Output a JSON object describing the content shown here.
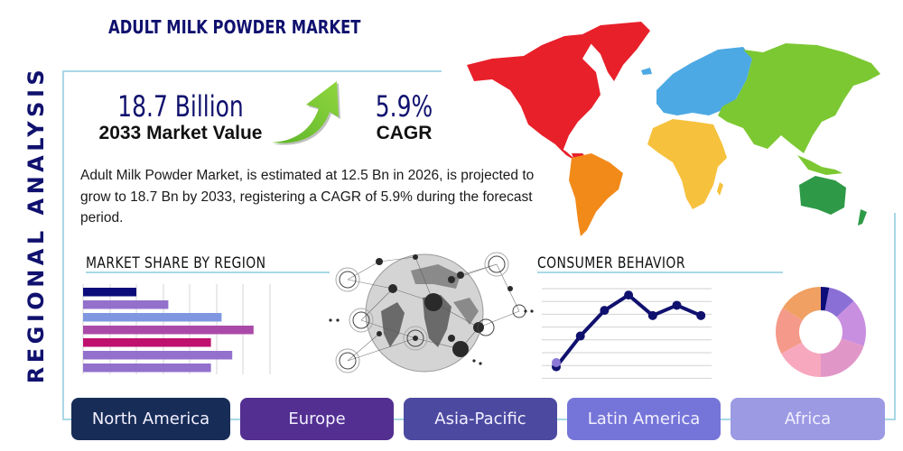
{
  "header": {
    "title": "ADULT MILK POWDER MARKET",
    "side_title": "REGIONAL ANALYSIS"
  },
  "kpis": {
    "market_value": "18.7 Billion",
    "market_value_label": "2033 Market Value",
    "cagr": "5.9%",
    "cagr_label": "CAGR"
  },
  "description": "Adult Milk Powder Market, is estimated at 12.5 Bn in 2026, is projected to grow to 18.7 Bn by 2033, registering a CAGR of 5.9% during the forecast period.",
  "sections": {
    "market_share_title": "MARKET SHARE BY REGION",
    "consumer_behavior_title": "CONSUMER BEHAVIOR"
  },
  "world_map": {
    "regions": [
      {
        "name": "North America",
        "color": "#e8202a"
      },
      {
        "name": "South America",
        "color": "#f28a1a"
      },
      {
        "name": "Europe",
        "color": "#4da9e3"
      },
      {
        "name": "Africa",
        "color": "#f6c13c"
      },
      {
        "name": "Asia",
        "color": "#7cc832"
      },
      {
        "name": "Oceania",
        "color": "#2e9a47"
      }
    ]
  },
  "region_buttons": [
    {
      "label": "North America",
      "color": "#172d57"
    },
    {
      "label": "Europe",
      "color": "#532f92"
    },
    {
      "label": "Asia-Pacific",
      "color": "#4c4aa0"
    },
    {
      "label": "Latin America",
      "color": "#7575d9"
    },
    {
      "label": "Africa",
      "color": "#9c9ae3"
    }
  ],
  "chart_data": [
    {
      "type": "bar",
      "orientation": "horizontal",
      "title": "MARKET SHARE BY REGION",
      "categories": [
        "1",
        "2",
        "3",
        "4",
        "5",
        "6",
        "7"
      ],
      "values": [
        2.0,
        3.2,
        5.2,
        6.4,
        4.8,
        5.6,
        4.8
      ],
      "colors": [
        "#0c0c7a",
        "#9270cc",
        "#7f97e0",
        "#a94aa8",
        "#c0106e",
        "#9270cc",
        "#9270cc"
      ],
      "xlim": [
        0,
        7
      ],
      "grid": true,
      "axis_labels_visible": false
    },
    {
      "type": "line",
      "title": "CONSUMER BEHAVIOR",
      "x": [
        1,
        2,
        3,
        4,
        5,
        6,
        7
      ],
      "values": [
        0.9,
        3.3,
        5.3,
        6.5,
        4.9,
        5.7,
        4.9
      ],
      "ylim": [
        0,
        7
      ],
      "color": "#10116e",
      "grid": true,
      "axis_labels_visible": false
    },
    {
      "type": "pie",
      "style": "donut",
      "values": [
        3,
        10,
        17,
        20,
        17,
        17,
        16
      ],
      "colors": [
        "#0c0c7a",
        "#8a6fd6",
        "#c88ee0",
        "#e196c8",
        "#f7a8bf",
        "#f59a8a",
        "#efa062"
      ],
      "labels_visible": false
    }
  ]
}
